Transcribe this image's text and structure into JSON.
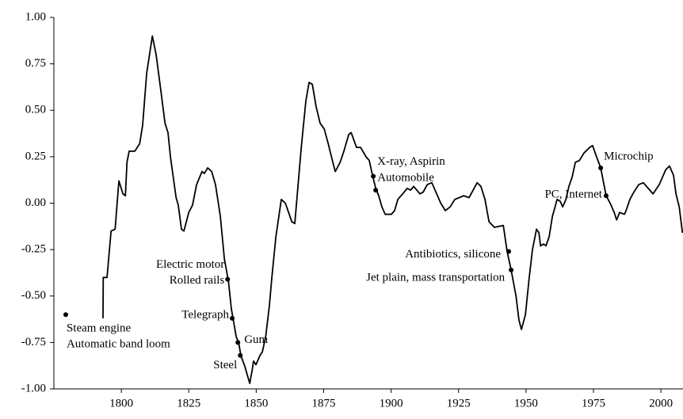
{
  "chart_data": {
    "type": "line",
    "xlim": [
      1775,
      2008.2
    ],
    "ylim": [
      -1,
      1
    ],
    "xticks": [
      1800,
      1825,
      1850,
      1875,
      1900,
      1925,
      1950,
      1975,
      2000
    ],
    "yticks": [
      {
        "value": 1,
        "label": "1.00"
      },
      0.75,
      {
        "value": 0.5,
        "label": "0.50"
      },
      0.25,
      {
        "value": 0,
        "label": "0.00"
      },
      -0.25,
      {
        "value": -0.5,
        "label": "-0.50"
      },
      -0.75,
      {
        "value": -1,
        "label": "-1.00"
      }
    ],
    "color": "#000000",
    "x": [
      1793.2,
      1793.3,
      1794.7,
      1796.2,
      1797.7,
      1799.1,
      1800.6,
      1801.5,
      1802.1,
      1802.9,
      1805.0,
      1806.8,
      1807.9,
      1809.4,
      1811.5,
      1812.9,
      1814.7,
      1816.2,
      1817.3,
      1818.2,
      1820.3,
      1821.1,
      1822.3,
      1823.2,
      1825.0,
      1826.4,
      1827.9,
      1829.9,
      1830.8,
      1832.0,
      1833.5,
      1834.9,
      1836.7,
      1838.2,
      1839.7,
      1840.8,
      1841.4,
      1842.6,
      1843.5,
      1844.3,
      1845.8,
      1847.6,
      1848.5,
      1849.0,
      1849.9,
      1851.4,
      1852.3,
      1853.5,
      1854.9,
      1855.8,
      1857.3,
      1859.3,
      1860.8,
      1862.0,
      1863.2,
      1864.3,
      1866.7,
      1868.4,
      1869.6,
      1870.8,
      1872.2,
      1873.7,
      1875.2,
      1876.7,
      1878.4,
      1879.3,
      1881.1,
      1882.5,
      1884.3,
      1885.2,
      1887.2,
      1888.7,
      1890.7,
      1891.9,
      1893.1,
      1894.3,
      1895.4,
      1896.6,
      1897.8,
      1900.1,
      1901.3,
      1902.5,
      1904.3,
      1906.0,
      1907.2,
      1908.4,
      1910.7,
      1911.9,
      1913.4,
      1915.1,
      1916.6,
      1918.4,
      1920.1,
      1921.9,
      1923.6,
      1926.9,
      1928.9,
      1930.4,
      1931.9,
      1933.3,
      1934.8,
      1936.3,
      1938.3,
      1941.6,
      1943.0,
      1944.5,
      1946.3,
      1947.4,
      1948.3,
      1949.8,
      1951.2,
      1952.4,
      1953.9,
      1954.8,
      1955.4,
      1956.5,
      1957.4,
      1958.6,
      1959.8,
      1960.6,
      1961.5,
      1962.7,
      1963.6,
      1964.8,
      1965.9,
      1967.1,
      1968.3,
      1969.8,
      1971.5,
      1973.6,
      1974.7,
      1975.9,
      1977.7,
      1978.9,
      1979.7,
      1981.2,
      1982.7,
      1983.6,
      1984.7,
      1986.5,
      1987.1,
      1988.5,
      1990.0,
      1991.8,
      1993.5,
      1995.3,
      1997.1,
      1999.4,
      2001.8,
      2003.2,
      2004.7,
      2005.6,
      2006.8,
      2008.0
    ],
    "values": [
      -0.62,
      -0.4,
      -0.4,
      -0.15,
      -0.14,
      0.12,
      0.05,
      0.04,
      0.22,
      0.28,
      0.28,
      0.32,
      0.42,
      0.7,
      0.9,
      0.8,
      0.6,
      0.43,
      0.38,
      0.25,
      0.03,
      -0.01,
      -0.14,
      -0.15,
      -0.05,
      -0.01,
      0.1,
      0.17,
      0.16,
      0.19,
      0.17,
      0.1,
      -0.07,
      -0.3,
      -0.42,
      -0.57,
      -0.62,
      -0.72,
      -0.75,
      -0.82,
      -0.88,
      -0.97,
      -0.9,
      -0.85,
      -0.87,
      -0.82,
      -0.8,
      -0.72,
      -0.55,
      -0.4,
      -0.18,
      0.02,
      0.0,
      -0.05,
      -0.1,
      -0.11,
      0.3,
      0.55,
      0.65,
      0.64,
      0.52,
      0.43,
      0.4,
      0.32,
      0.22,
      0.17,
      0.22,
      0.28,
      0.37,
      0.38,
      0.3,
      0.3,
      0.25,
      0.23,
      0.15,
      0.08,
      0.04,
      -0.02,
      -0.06,
      -0.06,
      -0.04,
      0.02,
      0.05,
      0.08,
      0.07,
      0.09,
      0.05,
      0.06,
      0.1,
      0.11,
      0.06,
      0.0,
      -0.04,
      -0.02,
      0.02,
      0.04,
      0.03,
      0.07,
      0.11,
      0.09,
      0.02,
      -0.1,
      -0.13,
      -0.12,
      -0.26,
      -0.36,
      -0.5,
      -0.63,
      -0.68,
      -0.6,
      -0.4,
      -0.25,
      -0.14,
      -0.16,
      -0.23,
      -0.22,
      -0.23,
      -0.18,
      -0.07,
      -0.03,
      0.02,
      0.01,
      -0.02,
      0.02,
      0.09,
      0.14,
      0.22,
      0.23,
      0.27,
      0.3,
      0.31,
      0.26,
      0.19,
      0.1,
      0.04,
      0.0,
      -0.05,
      -0.09,
      -0.05,
      -0.06,
      -0.04,
      0.02,
      0.06,
      0.1,
      0.11,
      0.08,
      0.05,
      0.1,
      0.18,
      0.2,
      0.15,
      0.05,
      -0.02,
      -0.16
    ],
    "events": [
      {
        "x": 1779.4,
        "y": -0.6,
        "label": [
          "Steam engine",
          "Automatic band loom"
        ]
      },
      {
        "x": 1839.4,
        "y": -0.41,
        "label": [
          "Electric motor",
          "Rolled rails"
        ]
      },
      {
        "x": 1841.1,
        "y": -0.62,
        "label": [
          "Telegraph"
        ]
      },
      {
        "x": 1843.2,
        "y": -0.75,
        "label": [
          "Gum"
        ]
      },
      {
        "x": 1844.1,
        "y": -0.82,
        "label": [
          "Steel"
        ]
      },
      {
        "x": 1893.4,
        "y": 0.145,
        "label": [
          "X-ray, Aspirin"
        ]
      },
      {
        "x": 1894.3,
        "y": 0.07,
        "label": [
          "Automobile"
        ]
      },
      {
        "x": 1943.6,
        "y": -0.26,
        "label": [
          "Antibiotics, silicone"
        ]
      },
      {
        "x": 1944.5,
        "y": -0.36,
        "label": [
          "Jet plain, mass transportation"
        ]
      },
      {
        "x": 1977.7,
        "y": 0.19,
        "label": [
          "Microchip"
        ]
      },
      {
        "x": 1979.7,
        "y": 0.04,
        "label": [
          "PC, Internet"
        ]
      }
    ]
  }
}
